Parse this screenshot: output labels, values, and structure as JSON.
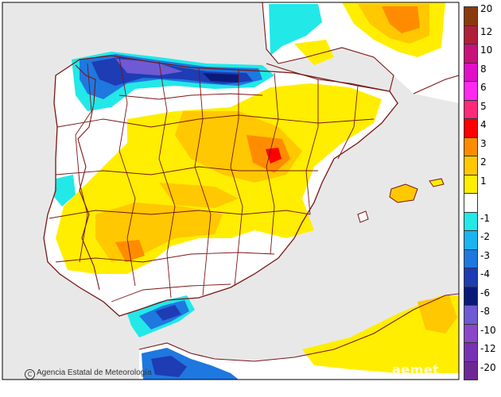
{
  "colors": {
    "sea": "#e8e8e8",
    "land": "#ffffff",
    "border": "#7a1414",
    "coast": "#7a1414",
    "frame": "#000000"
  },
  "legend": {
    "items": [
      {
        "label": "20",
        "color": "#8b3a0f"
      },
      {
        "label": "12",
        "color": "#b0203a"
      },
      {
        "label": "10",
        "color": "#c8127a"
      },
      {
        "label": "8",
        "color": "#e010c8"
      },
      {
        "label": "6",
        "color": "#ff28f0"
      },
      {
        "label": "5",
        "color": "#ff2a7a"
      },
      {
        "label": "4",
        "color": "#ff0000"
      },
      {
        "label": "3",
        "color": "#ff8c00"
      },
      {
        "label": "2",
        "color": "#ffc800"
      },
      {
        "label": "1",
        "color": "#ffee00"
      },
      {
        "label": "",
        "color": "#ffffff"
      },
      {
        "label": "-1",
        "color": "#22e8e8"
      },
      {
        "label": "-2",
        "color": "#1ab4f0"
      },
      {
        "label": "-3",
        "color": "#1e78e0"
      },
      {
        "label": "-4",
        "color": "#1e3cb4"
      },
      {
        "label": "-6",
        "color": "#0a1a78"
      },
      {
        "label": "-8",
        "color": "#6e5ad2"
      },
      {
        "label": "-10",
        "color": "#8c46c8"
      },
      {
        "label": "-12",
        "color": "#7832b4"
      },
      {
        "label": "-20",
        "color": "#6e2896"
      }
    ]
  },
  "credit": {
    "icon": "C",
    "text": "Agencia Estatal de Meteorología"
  },
  "watermark": "aemet"
}
